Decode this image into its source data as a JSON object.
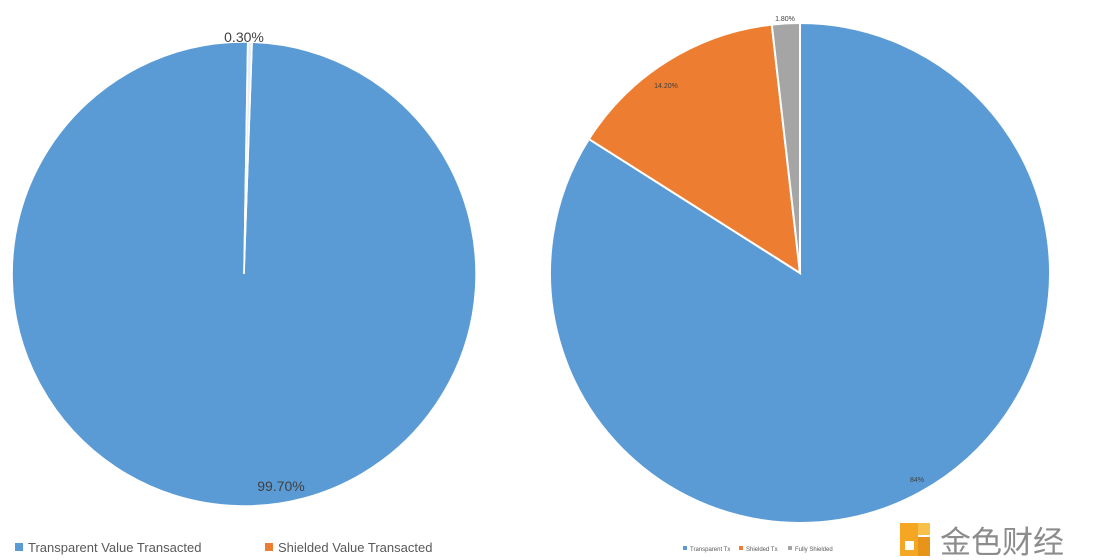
{
  "chart_data": [
    {
      "type": "pie",
      "slices": [
        {
          "label": "Transparent Value Transacted",
          "value": 99.7,
          "display": "99.70%"
        },
        {
          "label": "Shielded Value Transacted",
          "value": 0.3,
          "display": "0.30%"
        }
      ],
      "legend": {
        "placement": "bottom-left",
        "entries": [
          "Transparent Value Transacted",
          "Shielded Value Transacted"
        ]
      }
    },
    {
      "type": "pie",
      "slices": [
        {
          "label": "Transparent Tx",
          "value": 84.0,
          "display": "84%"
        },
        {
          "label": "Shielded Tx",
          "value": 14.2,
          "display": "14.20%"
        },
        {
          "label": "Fully Shielded",
          "value": 1.8,
          "display": "1.80%"
        }
      ],
      "legend": {
        "placement": "bottom",
        "entries": [
          "Transparent Tx",
          "Shielded Tx",
          "Fully Shielded"
        ]
      }
    }
  ],
  "colors": {
    "transparent": "#5b9bd5",
    "shielded": "#ed7d31",
    "fully_shielded": "#a5a5a5",
    "small_slice_chart1": "#e9eef6",
    "slice_border": "#ffffff",
    "label_text": "#404040",
    "legend_text": "#595959",
    "watermark_orange": "#f5a623",
    "watermark_gray": "#8c8c8c"
  },
  "watermark": {
    "text": "金色财经",
    "icon": "golden-finance-logo"
  }
}
